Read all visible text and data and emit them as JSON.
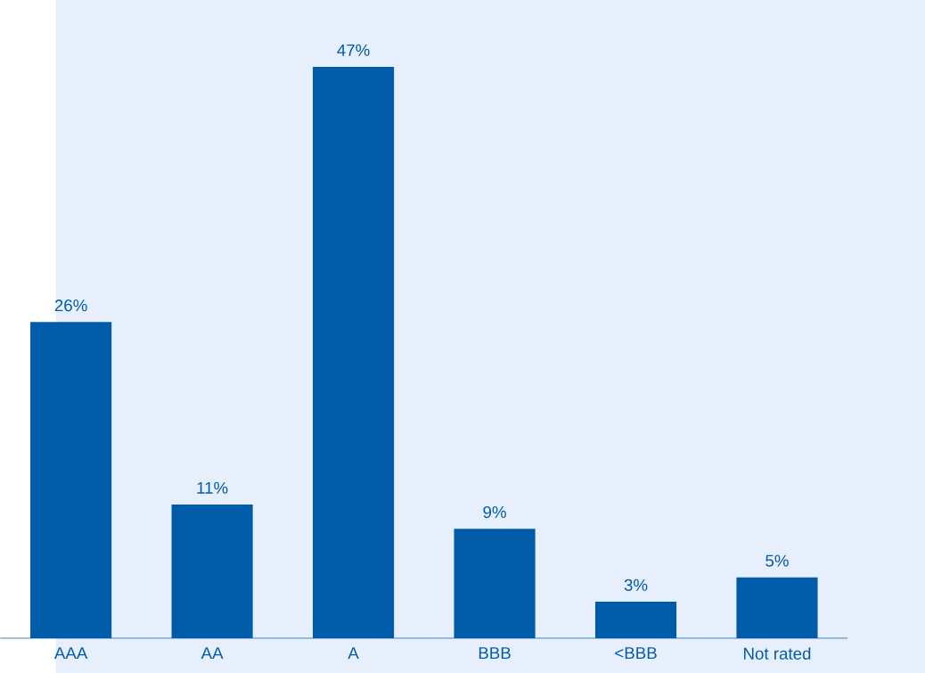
{
  "chart_data": {
    "type": "bar",
    "categories": [
      "AAA",
      "AA",
      "A",
      "BBB",
      "<BBB",
      "Not rated"
    ],
    "values": [
      26,
      11,
      47,
      9,
      3,
      5
    ],
    "value_labels": [
      "26%",
      "11%",
      "47%",
      "9%",
      "3%",
      "5%"
    ],
    "color": "#005ca8"
  }
}
